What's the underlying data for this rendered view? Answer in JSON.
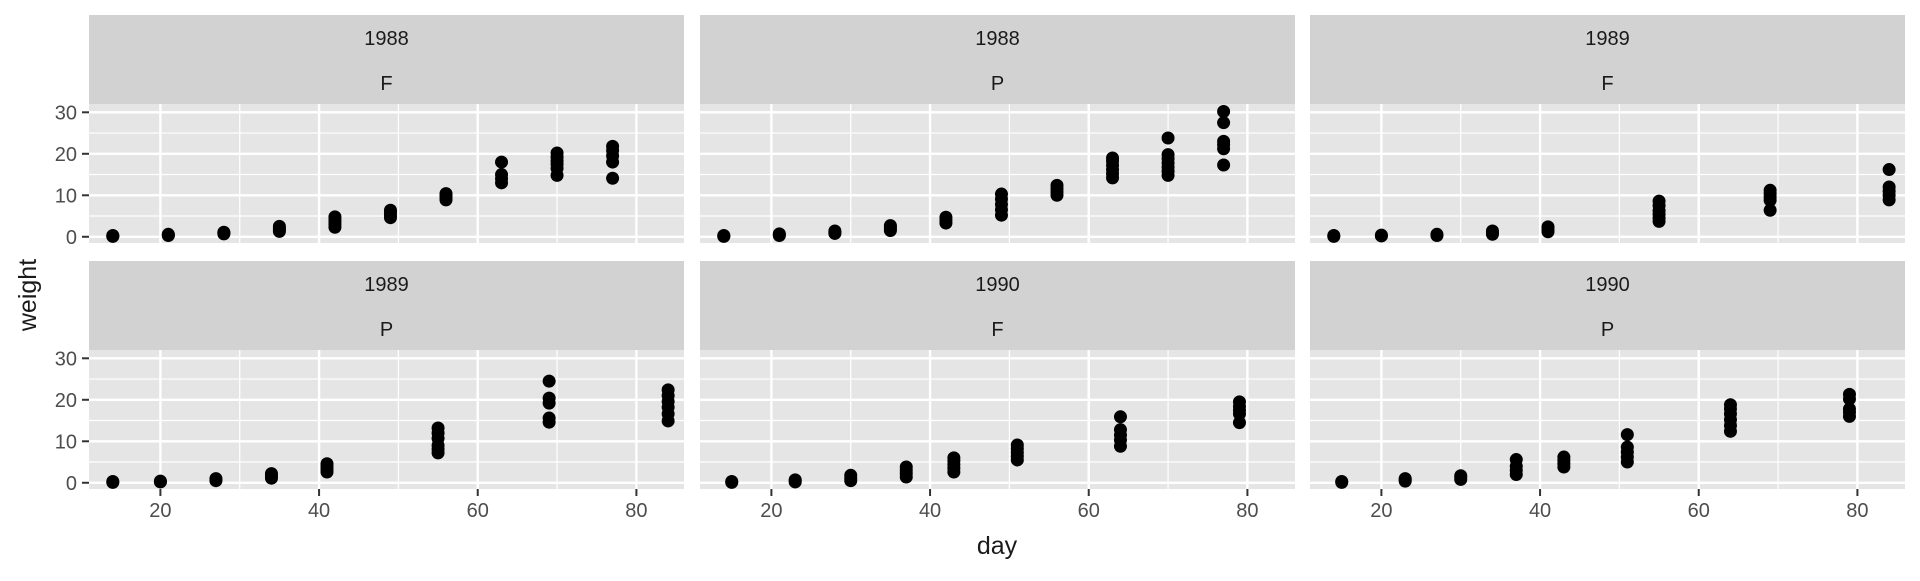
{
  "chart_data": {
    "type": "scatter",
    "title": "",
    "xlabel": "day",
    "ylabel": "weight",
    "xlim": [
      11,
      86
    ],
    "ylim": [
      -1.5,
      32
    ],
    "x_ticks": [
      20,
      40,
      60,
      80
    ],
    "y_ticks": [
      0,
      10,
      20,
      30
    ],
    "grid": true,
    "legend": "none",
    "colors": {
      "panel_bg": "#e5e5e5",
      "strip_bg": "#d2d2d2",
      "grid": "#ffffff",
      "point": "#000000",
      "text": "#1a1a1a",
      "tick_text": "#4d4d4d"
    },
    "panels": [
      {
        "strip": [
          "1988",
          "F"
        ],
        "points": [
          [
            14,
            0.1
          ],
          [
            14,
            0.2
          ],
          [
            14,
            0.3
          ],
          [
            21,
            0.3
          ],
          [
            21,
            0.4
          ],
          [
            21,
            0.6
          ],
          [
            28,
            0.7
          ],
          [
            28,
            0.9
          ],
          [
            28,
            1.1
          ],
          [
            35,
            1.3
          ],
          [
            35,
            1.7
          ],
          [
            35,
            2.1
          ],
          [
            35,
            2.5
          ],
          [
            42,
            2.3
          ],
          [
            42,
            3.0
          ],
          [
            42,
            3.6
          ],
          [
            42,
            4.2
          ],
          [
            42,
            4.8
          ],
          [
            49,
            4.6
          ],
          [
            49,
            5.2
          ],
          [
            49,
            5.8
          ],
          [
            49,
            6.4
          ],
          [
            56,
            8.9
          ],
          [
            56,
            9.4
          ],
          [
            56,
            9.9
          ],
          [
            56,
            10.4
          ],
          [
            63,
            13.0
          ],
          [
            63,
            14.0
          ],
          [
            63,
            15.0
          ],
          [
            63,
            18.0
          ],
          [
            70,
            14.8
          ],
          [
            70,
            16.5
          ],
          [
            70,
            17.5
          ],
          [
            70,
            18.3
          ],
          [
            70,
            19.2
          ],
          [
            70,
            20.2
          ],
          [
            77,
            14.1
          ],
          [
            77,
            18.0
          ],
          [
            77,
            19.5
          ],
          [
            77,
            20.8
          ],
          [
            77,
            21.8
          ]
        ]
      },
      {
        "strip": [
          "1988",
          "P"
        ],
        "points": [
          [
            14,
            0.1
          ],
          [
            14,
            0.2
          ],
          [
            14,
            0.3
          ],
          [
            21,
            0.3
          ],
          [
            21,
            0.5
          ],
          [
            21,
            0.7
          ],
          [
            28,
            0.8
          ],
          [
            28,
            1.1
          ],
          [
            28,
            1.4
          ],
          [
            35,
            1.5
          ],
          [
            35,
            1.9
          ],
          [
            35,
            2.3
          ],
          [
            35,
            2.7
          ],
          [
            42,
            3.3
          ],
          [
            42,
            4.0
          ],
          [
            42,
            4.7
          ],
          [
            49,
            5.2
          ],
          [
            49,
            6.5
          ],
          [
            49,
            7.8
          ],
          [
            49,
            9.1
          ],
          [
            49,
            10.3
          ],
          [
            56,
            10.0
          ],
          [
            56,
            10.8
          ],
          [
            56,
            11.6
          ],
          [
            56,
            12.4
          ],
          [
            63,
            14.2
          ],
          [
            63,
            15.2
          ],
          [
            63,
            16.2
          ],
          [
            63,
            17.2
          ],
          [
            63,
            18.2
          ],
          [
            63,
            19.0
          ],
          [
            70,
            14.8
          ],
          [
            70,
            15.8
          ],
          [
            70,
            16.8
          ],
          [
            70,
            17.8
          ],
          [
            70,
            18.8
          ],
          [
            70,
            19.8
          ],
          [
            70,
            23.8
          ],
          [
            77,
            17.3
          ],
          [
            77,
            21.2
          ],
          [
            77,
            22.2
          ],
          [
            77,
            23.0
          ],
          [
            77,
            27.5
          ],
          [
            77,
            30.2
          ]
        ]
      },
      {
        "strip": [
          "1989",
          "F"
        ],
        "points": [
          [
            14,
            0.1
          ],
          [
            14,
            0.3
          ],
          [
            20,
            0.2
          ],
          [
            20,
            0.4
          ],
          [
            27,
            0.3
          ],
          [
            27,
            0.6
          ],
          [
            34,
            0.6
          ],
          [
            34,
            1.0
          ],
          [
            34,
            1.4
          ],
          [
            41,
            1.2
          ],
          [
            41,
            1.8
          ],
          [
            41,
            2.4
          ],
          [
            55,
            3.7
          ],
          [
            55,
            4.5
          ],
          [
            55,
            5.4
          ],
          [
            55,
            6.3
          ],
          [
            55,
            7.5
          ],
          [
            55,
            8.6
          ],
          [
            69,
            6.4
          ],
          [
            69,
            8.8
          ],
          [
            69,
            9.6
          ],
          [
            69,
            10.4
          ],
          [
            69,
            11.2
          ],
          [
            84,
            8.9
          ],
          [
            84,
            10.0
          ],
          [
            84,
            11.0
          ],
          [
            84,
            12.0
          ],
          [
            84,
            16.2
          ]
        ]
      },
      {
        "strip": [
          "1989",
          "P"
        ],
        "points": [
          [
            14,
            0.1
          ],
          [
            14,
            0.3
          ],
          [
            20,
            0.2
          ],
          [
            20,
            0.4
          ],
          [
            27,
            0.5
          ],
          [
            27,
            1.0
          ],
          [
            34,
            1.1
          ],
          [
            34,
            1.6
          ],
          [
            34,
            2.2
          ],
          [
            41,
            2.6
          ],
          [
            41,
            3.3
          ],
          [
            41,
            4.0
          ],
          [
            41,
            4.6
          ],
          [
            55,
            7.2
          ],
          [
            55,
            8.1
          ],
          [
            55,
            9.0
          ],
          [
            55,
            10.7
          ],
          [
            55,
            12.0
          ],
          [
            55,
            13.2
          ],
          [
            69,
            14.6
          ],
          [
            69,
            15.6
          ],
          [
            69,
            19.2
          ],
          [
            69,
            20.4
          ],
          [
            69,
            24.5
          ],
          [
            84,
            14.9
          ],
          [
            84,
            16.6
          ],
          [
            84,
            18.2
          ],
          [
            84,
            19.6
          ],
          [
            84,
            21.0
          ],
          [
            84,
            22.4
          ]
        ]
      },
      {
        "strip": [
          "1990",
          "F"
        ],
        "points": [
          [
            15,
            0.1
          ],
          [
            15,
            0.3
          ],
          [
            23,
            0.2
          ],
          [
            23,
            0.5
          ],
          [
            23,
            0.7
          ],
          [
            30,
            0.5
          ],
          [
            30,
            1.1
          ],
          [
            30,
            1.8
          ],
          [
            37,
            1.4
          ],
          [
            37,
            2.2
          ],
          [
            37,
            3.0
          ],
          [
            37,
            3.8
          ],
          [
            43,
            2.6
          ],
          [
            43,
            3.5
          ],
          [
            43,
            4.4
          ],
          [
            43,
            5.3
          ],
          [
            43,
            6.0
          ],
          [
            51,
            5.5
          ],
          [
            51,
            6.4
          ],
          [
            51,
            7.3
          ],
          [
            51,
            8.2
          ],
          [
            51,
            9.1
          ],
          [
            64,
            8.8
          ],
          [
            64,
            10.3
          ],
          [
            64,
            11.5
          ],
          [
            64,
            12.8
          ],
          [
            64,
            15.9
          ],
          [
            79,
            14.5
          ],
          [
            79,
            16.6
          ],
          [
            79,
            17.5
          ],
          [
            79,
            18.4
          ],
          [
            79,
            19.5
          ]
        ]
      },
      {
        "strip": [
          "1990",
          "P"
        ],
        "points": [
          [
            15,
            0.1
          ],
          [
            15,
            0.3
          ],
          [
            23,
            0.4
          ],
          [
            23,
            0.7
          ],
          [
            23,
            1.0
          ],
          [
            30,
            0.8
          ],
          [
            30,
            1.3
          ],
          [
            30,
            1.7
          ],
          [
            37,
            2.0
          ],
          [
            37,
            3.0
          ],
          [
            37,
            4.0
          ],
          [
            37,
            5.6
          ],
          [
            43,
            3.8
          ],
          [
            43,
            4.6
          ],
          [
            43,
            5.4
          ],
          [
            43,
            6.2
          ],
          [
            51,
            5.0
          ],
          [
            51,
            6.2
          ],
          [
            51,
            7.4
          ],
          [
            51,
            8.6
          ],
          [
            51,
            11.6
          ],
          [
            64,
            12.4
          ],
          [
            64,
            13.8
          ],
          [
            64,
            15.2
          ],
          [
            64,
            16.6
          ],
          [
            64,
            17.8
          ],
          [
            64,
            18.8
          ],
          [
            79,
            16.0
          ],
          [
            79,
            17.0
          ],
          [
            79,
            17.8
          ],
          [
            79,
            20.2
          ],
          [
            79,
            21.3
          ]
        ]
      }
    ]
  }
}
